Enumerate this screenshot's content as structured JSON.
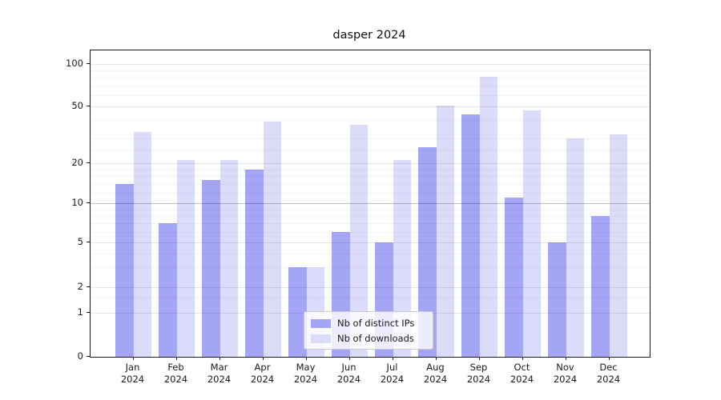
{
  "chart_data": {
    "type": "bar",
    "title": "dasper 2024",
    "categories": [
      "Jan",
      "Feb",
      "Mar",
      "Apr",
      "May",
      "Jun",
      "Jul",
      "Aug",
      "Sep",
      "Oct",
      "Nov",
      "Dec"
    ],
    "category_year": "2024",
    "series": [
      {
        "name": "Nb of distinct IPs",
        "color": "#a5a5f6",
        "values": [
          14,
          7,
          15,
          18,
          3,
          6,
          5,
          26,
          44,
          11,
          5,
          8
        ]
      },
      {
        "name": "Nb of downloads",
        "color": "#dbdbfa",
        "values": [
          33,
          21,
          21,
          39,
          3,
          37,
          21,
          51,
          81,
          47,
          30,
          32
        ]
      }
    ],
    "xlabel": "",
    "ylabel": "",
    "yscale": "symlog",
    "yticks": [
      0,
      1,
      2,
      5,
      10,
      20,
      50,
      100
    ],
    "minor_yticks": [
      1.5,
      3,
      4,
      6,
      7,
      8,
      9,
      12,
      14,
      16,
      18,
      25,
      30,
      40,
      60,
      70,
      80,
      90
    ],
    "ylim": [
      0,
      130
    ],
    "grid": true,
    "legend_position": "lower center",
    "emphasized_gridline_value": 10
  }
}
